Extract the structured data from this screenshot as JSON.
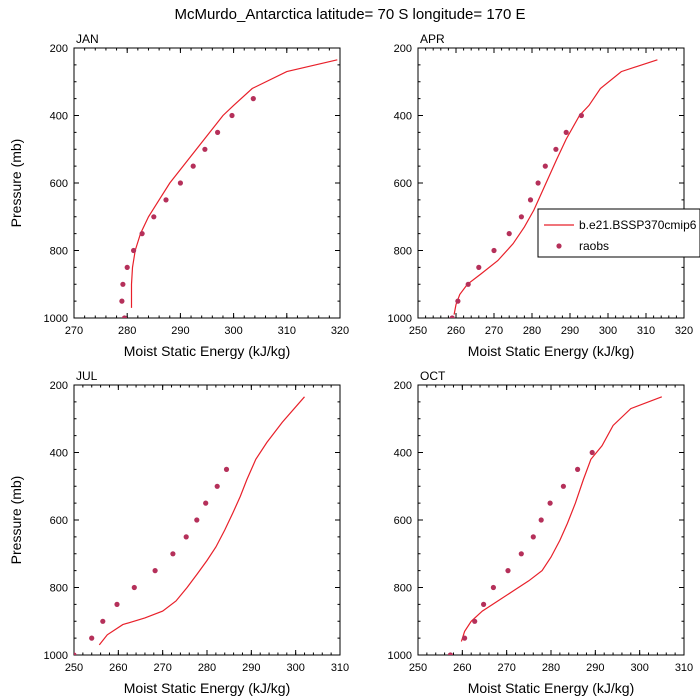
{
  "figure": {
    "title": "McMurdo_Antarctica  latitude= 70 S longitude= 170 E"
  },
  "legend": {
    "model_label": "b.e21.BSSP370cmip6",
    "obs_label": "raobs",
    "placement": "right side of the APR panel"
  },
  "colors": {
    "model_line": "#e8202a",
    "obs_marker": "#b5305a",
    "axis": "#000000"
  },
  "chart_data": [
    {
      "type": "line",
      "panel": "JAN",
      "title": "JAN",
      "xlabel": "Moist Static Energy (kJ/kg)",
      "ylabel": "Pressure (mb)",
      "xlim": [
        270,
        320
      ],
      "ylim": [
        1000,
        200
      ],
      "y_scale": "linear",
      "x_ticks": [
        270,
        280,
        290,
        300,
        310,
        320
      ],
      "y_ticks": [
        200,
        400,
        600,
        800,
        1000
      ],
      "grid": false,
      "series": [
        {
          "name": "b.e21.BSSP370cmip6",
          "style": "line",
          "x": [
            280.8,
            280.8,
            281.0,
            281.5,
            282.5,
            284.0,
            286.0,
            288.0,
            290.5,
            293.0,
            295.5,
            298.0,
            300.0,
            303.5,
            310.0,
            319.5
          ],
          "y": [
            970,
            900,
            850,
            800,
            750,
            700,
            650,
            600,
            550,
            500,
            450,
            400,
            370,
            320,
            270,
            235
          ]
        },
        {
          "name": "raobs",
          "style": "markers",
          "x": [
            279.5,
            279.0,
            279.2,
            280.0,
            281.2,
            282.8,
            285.0,
            287.3,
            290.0,
            292.4,
            294.6,
            297.0,
            299.7,
            303.7
          ],
          "y": [
            1000,
            950,
            900,
            850,
            800,
            750,
            700,
            650,
            600,
            550,
            500,
            450,
            400,
            350
          ]
        }
      ]
    },
    {
      "type": "line",
      "panel": "APR",
      "title": "APR",
      "xlabel": "Moist Static Energy (kJ/kg)",
      "ylabel": "",
      "xlim": [
        250,
        320
      ],
      "ylim": [
        1000,
        200
      ],
      "y_scale": "linear",
      "x_ticks": [
        250,
        260,
        270,
        280,
        290,
        300,
        310,
        320
      ],
      "y_ticks": [
        200,
        400,
        600,
        800,
        1000
      ],
      "grid": false,
      "series": [
        {
          "name": "b.e21.BSSP370cmip6",
          "style": "line",
          "x": [
            259.5,
            260.0,
            261.0,
            263.0,
            266.5,
            271.0,
            275.0,
            278.0,
            280.5,
            282.5,
            284.5,
            286.5,
            289.0,
            292.5,
            295.0,
            298.0,
            303.5,
            313.0
          ],
          "y": [
            990,
            960,
            930,
            900,
            870,
            830,
            780,
            730,
            680,
            630,
            580,
            530,
            470,
            400,
            370,
            320,
            270,
            235
          ]
        },
        {
          "name": "raobs",
          "style": "markers",
          "x": [
            259.0,
            260.5,
            263.2,
            266.0,
            270.0,
            274.0,
            277.2,
            279.6,
            281.6,
            283.5,
            286.3,
            289.0,
            293.0
          ],
          "y": [
            1000,
            950,
            900,
            850,
            800,
            750,
            700,
            650,
            600,
            550,
            500,
            450,
            400
          ]
        }
      ]
    },
    {
      "type": "line",
      "panel": "JUL",
      "title": "JUL",
      "xlabel": "Moist Static Energy (kJ/kg)",
      "ylabel": "Pressure (mb)",
      "xlim": [
        250,
        310
      ],
      "ylim": [
        1000,
        200
      ],
      "y_scale": "linear",
      "x_ticks": [
        250,
        260,
        270,
        280,
        290,
        300,
        310
      ],
      "y_ticks": [
        200,
        400,
        600,
        800,
        1000
      ],
      "grid": false,
      "series": [
        {
          "name": "b.e21.BSSP370cmip6",
          "style": "line",
          "x": [
            255.7,
            257.5,
            261.0,
            266.0,
            270.0,
            273.0,
            275.5,
            277.8,
            280.0,
            282.0,
            284.0,
            285.8,
            287.5,
            289.0,
            291.0,
            293.5,
            297.0,
            302.0
          ],
          "y": [
            970,
            940,
            910,
            890,
            870,
            840,
            800,
            760,
            720,
            680,
            630,
            580,
            530,
            480,
            420,
            370,
            310,
            235
          ]
        },
        {
          "name": "raobs",
          "style": "markers",
          "x": [
            250.0,
            254.0,
            256.5,
            259.7,
            263.6,
            268.3,
            272.3,
            275.3,
            277.7,
            279.7,
            282.3,
            284.4
          ],
          "y": [
            1000,
            950,
            900,
            850,
            800,
            750,
            700,
            650,
            600,
            550,
            500,
            450
          ]
        }
      ]
    },
    {
      "type": "line",
      "panel": "OCT",
      "title": "OCT",
      "xlabel": "Moist Static Energy (kJ/kg)",
      "ylabel": "",
      "xlim": [
        250,
        310
      ],
      "ylim": [
        1000,
        200
      ],
      "y_scale": "linear",
      "x_ticks": [
        250,
        260,
        270,
        280,
        290,
        300,
        310
      ],
      "y_ticks": [
        200,
        400,
        600,
        800,
        1000
      ],
      "grid": false,
      "series": [
        {
          "name": "b.e21.BSSP370cmip6",
          "style": "line",
          "x": [
            259.8,
            260.5,
            262.0,
            264.5,
            268.0,
            271.5,
            275.0,
            278.0,
            280.0,
            282.0,
            283.7,
            285.5,
            287.3,
            289.0,
            291.5,
            294.0,
            298.0,
            305.0
          ],
          "y": [
            960,
            930,
            900,
            870,
            840,
            810,
            780,
            750,
            710,
            660,
            610,
            550,
            480,
            420,
            380,
            320,
            270,
            235
          ]
        },
        {
          "name": "raobs",
          "style": "markers",
          "x": [
            257.3,
            260.5,
            262.8,
            264.8,
            267.0,
            270.3,
            273.3,
            276.0,
            277.8,
            279.8,
            282.8,
            286.0,
            289.3
          ],
          "y": [
            1000,
            950,
            900,
            850,
            800,
            750,
            700,
            650,
            600,
            550,
            500,
            450,
            400
          ]
        }
      ]
    }
  ]
}
